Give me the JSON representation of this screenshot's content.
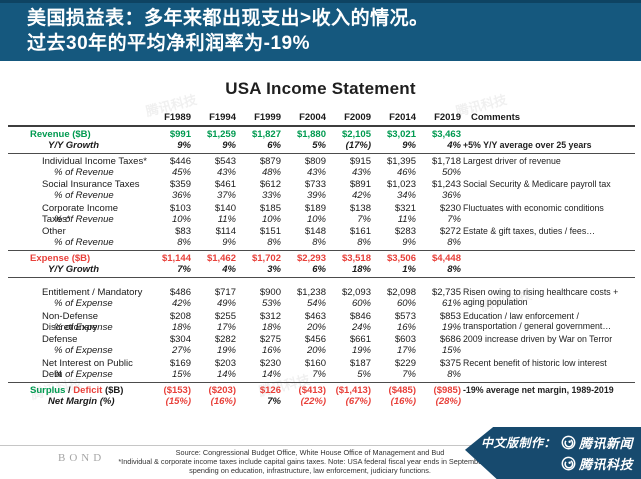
{
  "banner": {
    "line1": "美国损益表：多年来都出现支出>收入的情况。",
    "line2": "过去30年的平均净利润率为-19%"
  },
  "colors": {
    "green": "#009a50",
    "red": "#e8403a",
    "black": "#1a1a1a",
    "banner_bg": "#15587e",
    "badge_bg": "#174a6e"
  },
  "table": {
    "title": "USA Income Statement",
    "columns": [
      "F1989",
      "F1994",
      "F1999",
      "F2004",
      "F2009",
      "F2014",
      "F2019"
    ],
    "comments_header": "Comments",
    "rows": [
      {
        "id": "revenue",
        "section": true,
        "color": "green",
        "label": "Revenue ($B)",
        "sublabel": "Y/Y Growth",
        "sub_bold": true,
        "values": [
          "$991",
          "$1,259",
          "$1,827",
          "$1,880",
          "$2,105",
          "$3,021",
          "$3,463"
        ],
        "subvalues": [
          "9%",
          "9%",
          "6%",
          "5%",
          "(17%)",
          "9%",
          "4%"
        ],
        "comment": "+5% Y/Y average over 25 years",
        "comment_bold": true,
        "divider_after": true
      },
      {
        "id": "individual",
        "label": "Individual Income Taxes*",
        "sublabel": "% of Revenue",
        "values": [
          "$446",
          "$543",
          "$879",
          "$809",
          "$915",
          "$1,395",
          "$1,718"
        ],
        "subvalues": [
          "45%",
          "43%",
          "48%",
          "43%",
          "43%",
          "46%",
          "50%"
        ],
        "comment": "Largest driver of revenue"
      },
      {
        "id": "social",
        "label": "Social Insurance Taxes",
        "sublabel": "% of Revenue",
        "values": [
          "$359",
          "$461",
          "$612",
          "$733",
          "$891",
          "$1,023",
          "$1,243"
        ],
        "subvalues": [
          "36%",
          "37%",
          "33%",
          "39%",
          "42%",
          "34%",
          "36%"
        ],
        "comment": "Social Security & Medicare payroll tax"
      },
      {
        "id": "corporate",
        "label": "Corporate Income Taxes*",
        "sublabel": "% of Revenue",
        "values": [
          "$103",
          "$140",
          "$185",
          "$189",
          "$138",
          "$321",
          "$230"
        ],
        "subvalues": [
          "10%",
          "11%",
          "10%",
          "10%",
          "7%",
          "11%",
          "7%"
        ],
        "comment": "Fluctuates with economic conditions"
      },
      {
        "id": "other",
        "label": "Other",
        "sublabel": "% of Revenue",
        "values": [
          "$83",
          "$114",
          "$151",
          "$148",
          "$161",
          "$283",
          "$272"
        ],
        "subvalues": [
          "8%",
          "9%",
          "8%",
          "8%",
          "8%",
          "9%",
          "8%"
        ],
        "comment": "Estate & gift taxes, duties / fees…",
        "divider_after": true
      },
      {
        "id": "expense",
        "section": true,
        "color": "red",
        "label": "Expense ($B)",
        "sublabel": "Y/Y Growth",
        "sub_bold": true,
        "values": [
          "$1,144",
          "$1,462",
          "$1,702",
          "$2,293",
          "$3,518",
          "$3,506",
          "$4,448"
        ],
        "subvalues": [
          "7%",
          "4%",
          "3%",
          "6%",
          "18%",
          "1%",
          "8%"
        ],
        "comment": "",
        "divider_after": true
      },
      {
        "id": "entitlement",
        "gap_before": true,
        "label": "Entitlement / Mandatory",
        "sublabel": "% of Expense",
        "values": [
          "$486",
          "$717",
          "$900",
          "$1,238",
          "$2,093",
          "$2,098",
          "$2,735"
        ],
        "subvalues": [
          "42%",
          "49%",
          "53%",
          "54%",
          "60%",
          "60%",
          "61%"
        ],
        "comment": "Risen owing to rising healthcare costs + aging population"
      },
      {
        "id": "nondefense",
        "label": "Non-Defense Discretionary",
        "sublabel": "% of Expense",
        "values": [
          "$208",
          "$255",
          "$312",
          "$463",
          "$846",
          "$573",
          "$853"
        ],
        "subvalues": [
          "18%",
          "17%",
          "18%",
          "20%",
          "24%",
          "16%",
          "19%"
        ],
        "comment": "Education / law enforcement / transportation / general government…"
      },
      {
        "id": "defense",
        "label": "Defense",
        "sublabel": "% of Expense",
        "values": [
          "$304",
          "$282",
          "$275",
          "$456",
          "$661",
          "$603",
          "$686"
        ],
        "subvalues": [
          "27%",
          "19%",
          "16%",
          "20%",
          "19%",
          "17%",
          "15%"
        ],
        "comment": "2009 increase driven by War on Terror"
      },
      {
        "id": "netinterest",
        "label": "Net Interest on Public Debt",
        "sublabel": "% of Expense",
        "values": [
          "$169",
          "$203",
          "$230",
          "$160",
          "$187",
          "$229",
          "$375"
        ],
        "subvalues": [
          "15%",
          "14%",
          "14%",
          "7%",
          "5%",
          "7%",
          "8%"
        ],
        "comment": "Recent benefit of historic low interest",
        "divider_after": true
      },
      {
        "id": "surplus",
        "section": true,
        "label_parts": [
          {
            "text": "Surplus",
            "color": "green"
          },
          {
            "text": " / ",
            "color": "black"
          },
          {
            "text": "Deficit",
            "color": "red"
          },
          {
            "text": " ($B)",
            "color": "black"
          }
        ],
        "sublabel": "Net Margin (%)",
        "sub_bold": true,
        "values": [
          "($153)",
          "($203)",
          "$126",
          "($413)",
          "($1,413)",
          "($485)",
          "($985)"
        ],
        "value_colors": [
          "red",
          "red",
          "red",
          "red",
          "red",
          "red",
          "red"
        ],
        "subvalues": [
          "(15%)",
          "(16%)",
          "7%",
          "(22%)",
          "(67%)",
          "(16%)",
          "(28%)"
        ],
        "subvalue_colors": [
          "red",
          "red",
          "black",
          "red",
          "red",
          "red",
          "red"
        ],
        "comment": "-19% average net margin, 1989-2019",
        "comment_bold": true
      }
    ]
  },
  "watermark": {
    "text": "腾讯科技"
  },
  "footer": {
    "bond": "BOND",
    "source1": "Source: Congressional Budget Office, White House Office of Management and Bud",
    "source2": "*Individual & corporate income taxes include capital gains taxes.  Note: USA federal fiscal year ends in September. Non",
    "source3": "spending on education, infrastructure, law enforcement, judiciary functions."
  },
  "badge": {
    "prefix": "中文版制作：",
    "line1": "腾讯新闻",
    "line2": "腾讯科技"
  }
}
